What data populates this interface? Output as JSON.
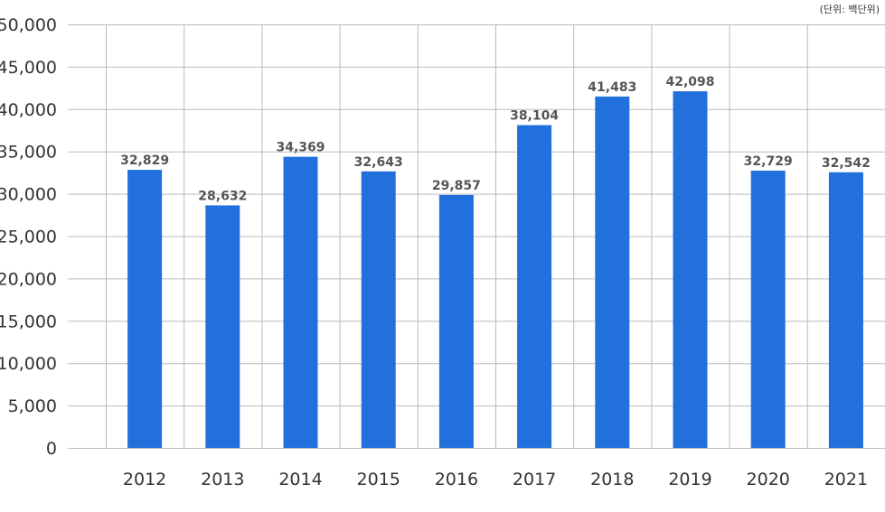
{
  "chart_data": {
    "type": "bar",
    "title": "",
    "unit_note": "(단위: 백단위)",
    "xlabel": "",
    "ylabel": "",
    "categories": [
      "2012",
      "2013",
      "2014",
      "2015",
      "2016",
      "2017",
      "2018",
      "2019",
      "2020",
      "2021"
    ],
    "values": [
      32829,
      28632,
      34369,
      32643,
      29857,
      38104,
      41483,
      42098,
      32729,
      32542
    ],
    "value_labels": [
      "32,829",
      "28,632",
      "34,369",
      "32,643",
      "29,857",
      "38,104",
      "41,483",
      "42,098",
      "32,729",
      "32,542"
    ],
    "y_ticks": [
      0,
      5000,
      10000,
      15000,
      20000,
      25000,
      30000,
      35000,
      40000,
      45000,
      50000
    ],
    "y_tick_labels": [
      "0",
      "5,000",
      "10,000",
      "15,000",
      "20,000",
      "25,000",
      "30,000",
      "35,000",
      "40,000",
      "45,000",
      "50,000"
    ],
    "ylim": [
      0,
      50000
    ],
    "grid": true,
    "legend": "none",
    "colors": {
      "bar": "#2170DB",
      "grid": "#BBBBBB",
      "axis_text": "#333333",
      "value_text": "#555555"
    }
  }
}
